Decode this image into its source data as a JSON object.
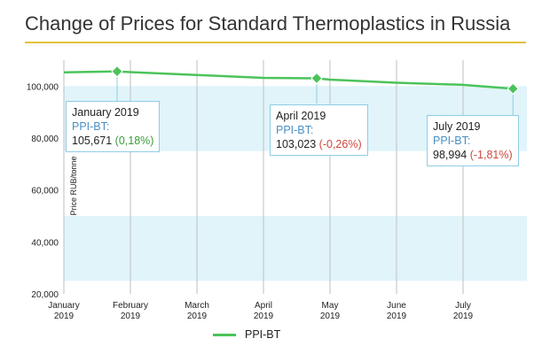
{
  "title": "Change of Prices for Standard Thermoplastics in Russia",
  "colors": {
    "title_rule": "#e2c23a",
    "line": "#4cc35a",
    "band": "#e0f4fa",
    "positive": "#3a9a3a",
    "negative": "#d0463f",
    "series_label": "#4a8fc2"
  },
  "chart_data": {
    "type": "line",
    "title": "Change of Prices for Standard Thermoplastics in Russia",
    "ylabel": "Price RUB/tonne",
    "xlabel": "",
    "ylim": [
      20000,
      110000
    ],
    "x_ticks": [
      "January\n2019",
      "February\n2019",
      "March\n2019",
      "April\n2019",
      "May\n2019",
      "June\n2019",
      "July\n2019"
    ],
    "y_ticks": [
      "20,000",
      "40,000",
      "60,000",
      "80,000",
      "100,000"
    ],
    "y_tick_values": [
      20000,
      40000,
      60000,
      80000,
      100000
    ],
    "grid": "vertical",
    "shaded_bands": [
      [
        25000,
        50000
      ],
      [
        75000,
        100000
      ]
    ],
    "series": [
      {
        "name": "PPI-BT",
        "x": [
          0,
          0.8,
          1,
          2,
          3,
          3.8,
          4,
          5,
          6,
          6.75
        ],
        "values": [
          105300,
          105671,
          105400,
          104300,
          103200,
          103023,
          102500,
          101300,
          100500,
          98994
        ],
        "markers": [
          1,
          5,
          9
        ]
      }
    ],
    "annotations": [
      {
        "date": "January 2019",
        "series": "PPI-BT:",
        "value": "105,671",
        "change": "(0,18%)",
        "sign": "positive",
        "point": 1
      },
      {
        "date": "April 2019",
        "series": "PPI-BT:",
        "value": "103,023",
        "change": "(-0,26%)",
        "sign": "negative",
        "point": 5
      },
      {
        "date": "July 2019",
        "series": "PPI-BT:",
        "value": "98,994",
        "change": "(-1,81%)",
        "sign": "negative",
        "point": 9
      }
    ],
    "legend": {
      "position": "bottom",
      "label": "PPI-BT"
    }
  }
}
